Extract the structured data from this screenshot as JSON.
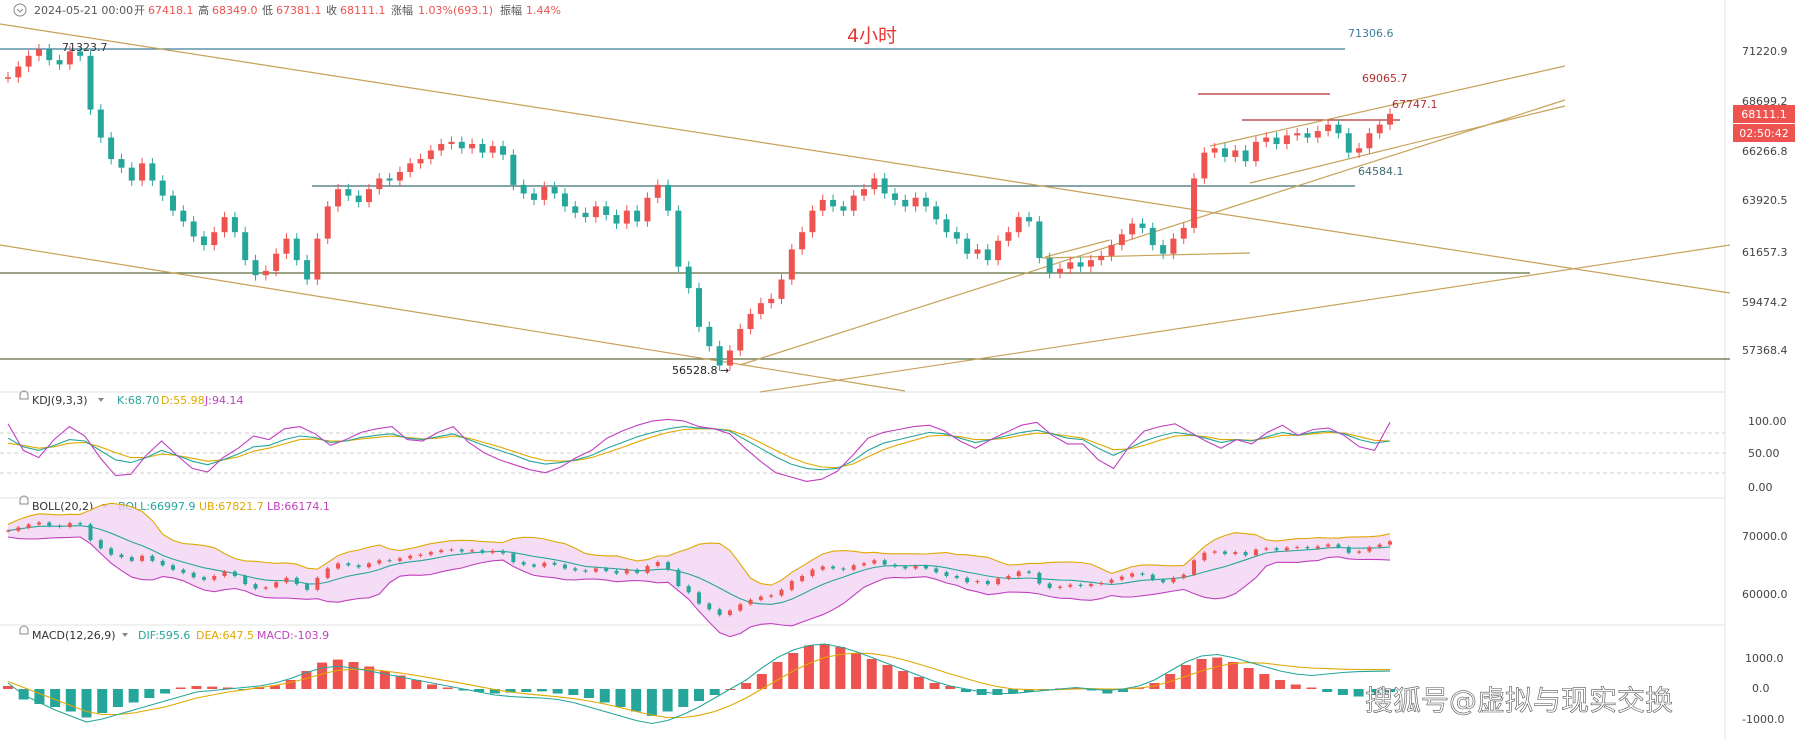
{
  "header": {
    "date": "2024-05-21 00:00",
    "open_label": "开",
    "open": "67418.1",
    "high_label": "高",
    "high": "68349.0",
    "low_label": "低",
    "low": "67381.1",
    "close_label": "收",
    "close": "68111.1",
    "change_label": "涨幅",
    "change": "1.03%(693.1)",
    "amp_label": "振幅",
    "amp": "1.44%"
  },
  "title": "4小时",
  "colors": {
    "up": "#ef5350",
    "down": "#26a69a",
    "trend": "#c7a25a",
    "level": "#5d6b3a",
    "current_bg": "#ef5350"
  },
  "price_axis": [
    "71220.9",
    "68699.2",
    "66266.8",
    "63920.5",
    "61657.3",
    "59474.2",
    "57368.4"
  ],
  "current_price": "68111.1",
  "countdown": "02:50:42",
  "annotations": {
    "high_left": "71323.7",
    "top_line": "71306.6",
    "target": "69065.7",
    "upper": "67747.1",
    "support": "64584.1",
    "low": "56528.8",
    "arrow": "→"
  },
  "kdj": {
    "name": "KDJ(9,3,3)",
    "k": "K:68.70",
    "d": "D:55.98",
    "j": "J:94.14",
    "axis": [
      "100.00",
      "50.00",
      "0.00"
    ]
  },
  "boll": {
    "name": "BOLL(20,2)",
    "mid": "BOLL:66997.9",
    "ub": "UB:67821.7",
    "lb": "LB:66174.1",
    "axis": [
      "70000.0",
      "60000.0"
    ]
  },
  "macd": {
    "name": "MACD(12,26,9)",
    "dif": "DIF:595.6",
    "dea": "DEA:647.5",
    "macd": "MACD:-103.9",
    "axis": [
      "1000.0",
      "0.0",
      "-1000.0"
    ]
  },
  "watermark": "搜狐号@虚拟与现实交换",
  "chart_data": {
    "type": "candlestick",
    "timeframe": "4h",
    "ylim": [
      56300,
      72200
    ],
    "price_path": [
      70000,
      70500,
      71000,
      71300,
      70800,
      70600,
      71200,
      71000,
      68500,
      67200,
      66200,
      65800,
      65200,
      66000,
      65200,
      64500,
      63800,
      63300,
      62600,
      62200,
      62800,
      63500,
      62800,
      61500,
      60800,
      61000,
      61800,
      62500,
      61500,
      60600,
      62500,
      64000,
      64800,
      64500,
      64200,
      64800,
      65300,
      65200,
      65600,
      66000,
      66200,
      66600,
      66900,
      67000,
      66700,
      66900,
      66500,
      66800,
      66400,
      65000,
      64600,
      64300,
      64900,
      64600,
      64000,
      63700,
      63500,
      64000,
      63600,
      63200,
      63800,
      63300,
      64400,
      65000,
      63800,
      61200,
      60200,
      58400,
      57500,
      56600,
      57300,
      58300,
      59000,
      59500,
      59700,
      60600,
      62000,
      62800,
      63800,
      64300,
      64000,
      63800,
      64500,
      64800,
      65300,
      64600,
      64300,
      64000,
      64400,
      64000,
      63400,
      62800,
      62500,
      61800,
      62000,
      61500,
      62400,
      62800,
      63500,
      63300,
      61600,
      60900,
      61100,
      61400,
      61200,
      61500,
      61700,
      62200,
      62700,
      63200,
      63000,
      62200,
      61800,
      62500,
      63000,
      65300,
      66500,
      66700,
      66300,
      66600,
      66100,
      67000,
      67200,
      66900,
      67300,
      67400,
      67200,
      67500,
      67800,
      67400,
      66500,
      66700,
      67400,
      67800,
      68300
    ],
    "levels": [
      71306.6,
      69065.7,
      67747.1,
      64584.1,
      61657.3,
      56528.8
    ],
    "kdj": {
      "K": [
        72,
        60,
        55,
        62,
        70,
        68,
        55,
        42,
        38,
        45,
        55,
        48,
        40,
        35,
        42,
        50,
        60,
        62,
        70,
        75,
        73,
        66,
        68,
        73,
        76,
        78,
        72,
        70,
        74,
        78,
        70,
        62,
        55,
        48,
        40,
        36,
        38,
        42,
        48,
        58,
        66,
        74,
        80,
        85,
        88,
        86,
        85,
        82,
        70,
        58,
        46,
        36,
        30,
        28,
        30,
        40,
        55,
        65,
        70,
        75,
        80,
        78,
        72,
        66,
        70,
        75,
        80,
        83,
        78,
        72,
        70,
        58,
        48,
        58,
        68,
        75,
        80,
        77,
        72,
        66,
        70,
        68,
        74,
        80,
        76,
        80,
        82,
        78,
        70,
        65,
        68
      ],
      "D": [
        65,
        62,
        58,
        60,
        65,
        66,
        60,
        52,
        45,
        45,
        50,
        48,
        44,
        40,
        42,
        46,
        54,
        58,
        64,
        70,
        71,
        68,
        68,
        71,
        73,
        75,
        73,
        71,
        72,
        75,
        72,
        66,
        60,
        53,
        46,
        41,
        40,
        41,
        45,
        52,
        59,
        67,
        74,
        80,
        84,
        85,
        85,
        83,
        76,
        66,
        55,
        45,
        37,
        32,
        31,
        36,
        46,
        56,
        63,
        69,
        75,
        76,
        74,
        70,
        70,
        72,
        76,
        79,
        78,
        75,
        72,
        64,
        56,
        57,
        62,
        69,
        75,
        76,
        74,
        70,
        70,
        69,
        72,
        76,
        76,
        78,
        80,
        79,
        74,
        69,
        68
      ],
      "J": [
        92,
        55,
        45,
        70,
        88,
        75,
        45,
        20,
        22,
        48,
        68,
        48,
        30,
        25,
        45,
        58,
        75,
        70,
        85,
        88,
        78,
        62,
        70,
        80,
        85,
        88,
        70,
        68,
        80,
        88,
        66,
        52,
        42,
        35,
        28,
        24,
        32,
        45,
        55,
        72,
        82,
        90,
        96,
        98,
        96,
        88,
        85,
        78,
        58,
        40,
        24,
        18,
        12,
        15,
        26,
        48,
        72,
        80,
        84,
        88,
        90,
        82,
        68,
        58,
        70,
        80,
        90,
        94,
        76,
        64,
        64,
        42,
        30,
        60,
        82,
        88,
        92,
        80,
        68,
        58,
        70,
        64,
        80,
        90,
        76,
        84,
        86,
        76,
        60,
        55,
        94
      ]
    },
    "macd_hist": [
      100,
      -350,
      -500,
      -600,
      -750,
      -950,
      -800,
      -600,
      -450,
      -300,
      -150,
      50,
      100,
      80,
      50,
      -20,
      60,
      120,
      300,
      600,
      880,
      980,
      900,
      750,
      600,
      450,
      300,
      150,
      50,
      -50,
      -100,
      -150,
      -120,
      -100,
      -80,
      -150,
      -200,
      -300,
      -450,
      -600,
      -750,
      -900,
      -750,
      -600,
      -400,
      -200,
      0,
      200,
      500,
      900,
      1200,
      1450,
      1500,
      1400,
      1200,
      1000,
      800,
      600,
      400,
      200,
      100,
      -100,
      -200,
      -200,
      -150,
      -100,
      -50,
      20,
      50,
      -50,
      -150,
      -100,
      50,
      200,
      500,
      800,
      1000,
      1050,
      900,
      700,
      500,
      300,
      150,
      50,
      -100,
      -200,
      -250,
      -200,
      -104
    ],
    "macd_dif": [
      200,
      -200,
      -450,
      -700,
      -900,
      -1100,
      -1000,
      -850,
      -700,
      -550,
      -400,
      -250,
      -100,
      -50,
      0,
      50,
      100,
      200,
      350,
      550,
      700,
      760,
      700,
      600,
      500,
      400,
      300,
      200,
      100,
      0,
      -100,
      -200,
      -250,
      -280,
      -300,
      -350,
      -450,
      -600,
      -750,
      -900,
      -1050,
      -1150,
      -1050,
      -850,
      -600,
      -300,
      0,
      300,
      700,
      1050,
      1300,
      1450,
      1500,
      1400,
      1250,
      1050,
      850,
      650,
      450,
      250,
      100,
      0,
      -100,
      -150,
      -150,
      -100,
      -50,
      0,
      50,
      0,
      -50,
      0,
      100,
      300,
      600,
      900,
      1100,
      1150,
      1050,
      900,
      750,
      600,
      500,
      450,
      500,
      550,
      580,
      590,
      596
    ],
    "macd_dea": [
      250,
      50,
      -150,
      -350,
      -550,
      -750,
      -850,
      -850,
      -800,
      -700,
      -600,
      -450,
      -300,
      -200,
      -100,
      -30,
      50,
      120,
      220,
      350,
      500,
      620,
      660,
      650,
      600,
      530,
      450,
      360,
      270,
      180,
      80,
      -20,
      -100,
      -160,
      -210,
      -260,
      -320,
      -400,
      -500,
      -620,
      -750,
      -870,
      -950,
      -950,
      -880,
      -750,
      -550,
      -300,
      0,
      300,
      600,
      850,
      1050,
      1150,
      1200,
      1180,
      1100,
      980,
      830,
      670,
      500,
      350,
      200,
      80,
      0,
      -20,
      -30,
      -20,
      0,
      10,
      0,
      0,
      30,
      100,
      250,
      420,
      600,
      750,
      850,
      880,
      860,
      800,
      740,
      700,
      680,
      660,
      650,
      648,
      647.5
    ]
  }
}
